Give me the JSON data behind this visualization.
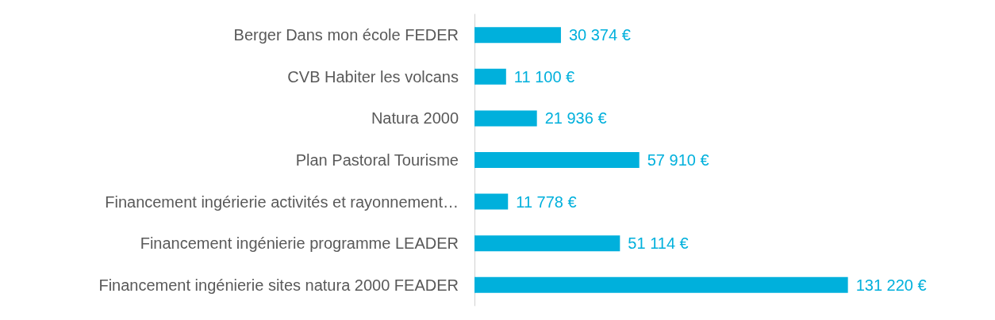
{
  "chart_data": {
    "type": "bar",
    "orientation": "horizontal",
    "categories": [
      "Berger Dans mon école FEDER",
      "CVB Habiter les volcans",
      "Natura 2000",
      "Plan Pastoral Tourisme",
      "Financement ingérierie activités et rayonnement…",
      "Financement ingénierie programme LEADER",
      "Financement ingénierie sites natura 2000 FEADER"
    ],
    "values": [
      30374,
      11100,
      21936,
      57910,
      11778,
      51114,
      131220
    ],
    "value_labels": [
      "30 374 €",
      "11 100 €",
      "21 936 €",
      "57 910 €",
      "11 778 €",
      "51 114 €",
      "131 220 €"
    ],
    "color": "#00b0dc"
  }
}
